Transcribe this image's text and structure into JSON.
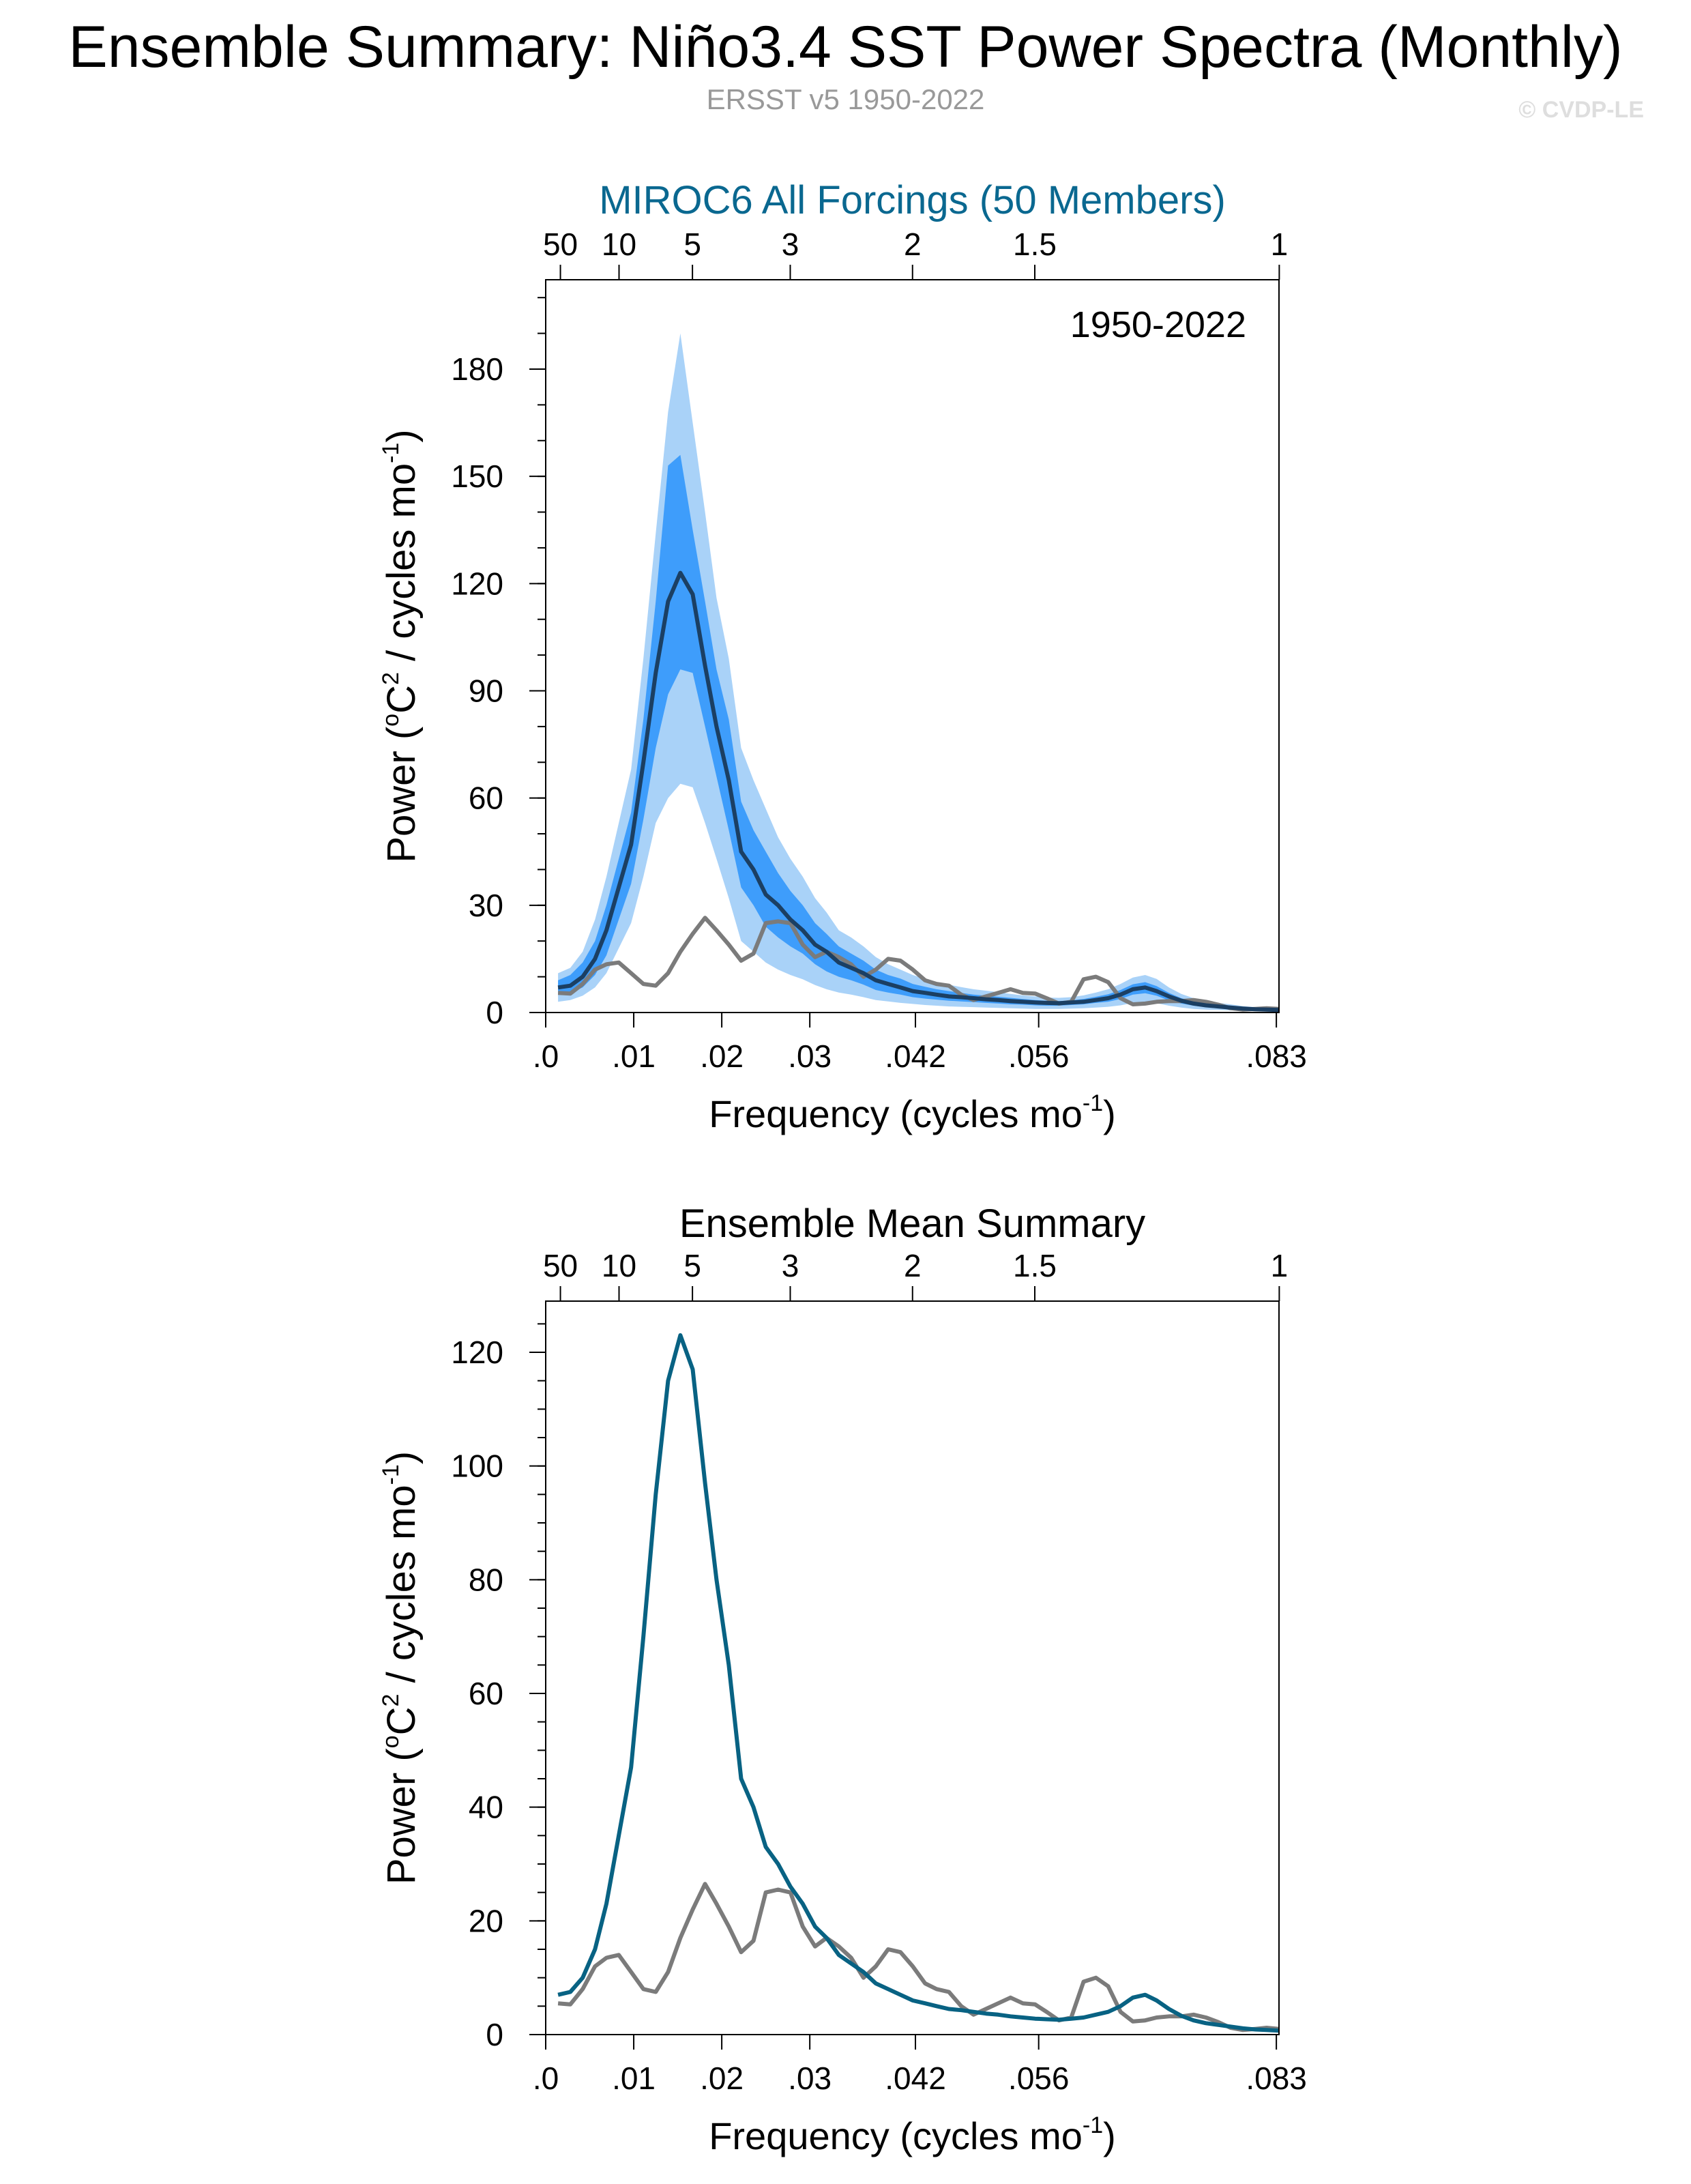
{
  "title": "Ensemble Summary: Niño3.4 SST Power Spectra (Monthly)",
  "subtitle": "ERSST v5 1950-2022",
  "credit": "© CVDP-LE",
  "colors": {
    "panel1_title": "#0a6890",
    "ensemble_mean_line": "#1b3f63",
    "band_outer": "#a9d2f8",
    "band_inner": "#3e9dfb",
    "panel2_mean_line": "#086283",
    "observations_line": "#7b7b7b"
  },
  "chart_data": [
    {
      "type": "area",
      "title": "MIROC6 All Forcings (50 Members)",
      "annotation": "1950-2022",
      "xlabel": "Frequency (cycles mo",
      "xlabel_sup": "-1",
      "xlabel_end": ")",
      "ylabel_pre": "Power (",
      "ylabel_o": "o",
      "ylabel_c": "C",
      "ylabel_2": "2",
      "ylabel_mid": " / cycles mo",
      "ylabel_sup": "-1",
      "ylabel_end": ")",
      "xlim": [
        0,
        0.0833
      ],
      "ylim": [
        0,
        205
      ],
      "x_ticks": [
        {
          "value": 0.0,
          "label": ".0"
        },
        {
          "value": 0.01,
          "label": ".01"
        },
        {
          "value": 0.02,
          "label": ".02"
        },
        {
          "value": 0.03,
          "label": ".03"
        },
        {
          "value": 0.042,
          "label": ".042"
        },
        {
          "value": 0.056,
          "label": ".056"
        },
        {
          "value": 0.083,
          "label": ".083"
        }
      ],
      "top_ticks": [
        {
          "value": 0.00167,
          "label": "50"
        },
        {
          "value": 0.00833,
          "label": "10"
        },
        {
          "value": 0.01667,
          "label": "5"
        },
        {
          "value": 0.02778,
          "label": "3"
        },
        {
          "value": 0.04167,
          "label": "2"
        },
        {
          "value": 0.05556,
          "label": "1.5"
        },
        {
          "value": 0.08333,
          "label": "1"
        }
      ],
      "y_ticks": [
        0,
        30,
        60,
        90,
        120,
        150,
        180
      ],
      "y_minor_step": 10,
      "x": [
        0.0014,
        0.0028,
        0.0042,
        0.0056,
        0.0069,
        0.0083,
        0.0097,
        0.0111,
        0.0125,
        0.0139,
        0.0153,
        0.0167,
        0.0181,
        0.0194,
        0.0208,
        0.0222,
        0.0236,
        0.025,
        0.0264,
        0.0278,
        0.0292,
        0.0306,
        0.0319,
        0.0333,
        0.0347,
        0.0361,
        0.0375,
        0.0389,
        0.0403,
        0.0417,
        0.0431,
        0.0444,
        0.0458,
        0.0472,
        0.0486,
        0.05,
        0.0514,
        0.0528,
        0.0542,
        0.0556,
        0.0569,
        0.0583,
        0.0597,
        0.0611,
        0.0625,
        0.0639,
        0.0653,
        0.0667,
        0.0681,
        0.0694,
        0.0708,
        0.0722,
        0.0736,
        0.075,
        0.0764,
        0.0778,
        0.0792,
        0.0806,
        0.0819,
        0.0833
      ],
      "series": [
        {
          "name": "mean",
          "values": [
            7,
            7.5,
            10,
            15,
            23,
            35,
            47,
            70,
            95,
            115,
            123,
            117,
            97,
            80,
            65,
            45,
            40,
            33,
            30,
            26,
            23,
            19,
            17,
            14,
            12.5,
            11,
            9,
            8,
            7,
            6,
            5.5,
            5,
            4.5,
            4.3,
            4,
            3.7,
            3.5,
            3.2,
            3,
            2.8,
            2.7,
            2.6,
            2.8,
            3,
            3.5,
            4,
            5,
            6.5,
            7,
            6,
            4.5,
            3.3,
            2.5,
            2,
            1.7,
            1.4,
            1.1,
            0.9,
            0.8,
            0.7
          ]
        },
        {
          "name": "inner_upper",
          "values": [
            9,
            10.5,
            14,
            20,
            30,
            43,
            56,
            82,
            115,
            153,
            156,
            135,
            115,
            96,
            82,
            59,
            51,
            45,
            39,
            34,
            30,
            25,
            22,
            18.5,
            16.5,
            14.5,
            12,
            10.5,
            9.5,
            8,
            7.2,
            6.5,
            6,
            5.5,
            5,
            4.7,
            4.4,
            4.1,
            3.8,
            3.5,
            3.3,
            3.2,
            3.4,
            3.8,
            4.4,
            5.1,
            6.3,
            7.9,
            8.5,
            7.4,
            5.5,
            4,
            3.1,
            2.5,
            2.1,
            1.7,
            1.4,
            1.1,
            1,
            0.9
          ]
        },
        {
          "name": "inner_lower",
          "values": [
            5,
            5.5,
            7,
            10.5,
            16,
            26,
            36,
            54,
            74,
            89,
            96,
            95,
            80,
            66,
            51,
            35,
            30,
            24,
            21,
            18.5,
            16.5,
            13.5,
            11.5,
            10,
            9,
            7.8,
            6.3,
            5.6,
            5,
            4.3,
            3.9,
            3.6,
            3.3,
            3.1,
            2.9,
            2.7,
            2.5,
            2.3,
            2.2,
            2,
            1.9,
            1.9,
            2.1,
            2.3,
            2.7,
            3,
            3.8,
            5,
            5.4,
            4.7,
            3.4,
            2.5,
            1.9,
            1.5,
            1.3,
            1.1,
            0.8,
            0.7,
            0.6,
            0.5
          ]
        },
        {
          "name": "outer_upper",
          "values": [
            11,
            12.5,
            17,
            26,
            38,
            53,
            68,
            99,
            134,
            168,
            190,
            165,
            140,
            116,
            99,
            74,
            65,
            57,
            49,
            43,
            38,
            32,
            28,
            23,
            21,
            18.5,
            15.5,
            13.5,
            12,
            10.5,
            9.4,
            8.5,
            7.8,
            7.1,
            6.5,
            6.1,
            5.7,
            5.2,
            4.8,
            4.5,
            4.2,
            4.1,
            4.3,
            4.8,
            5.6,
            6.5,
            8,
            9.8,
            10.5,
            9.4,
            7,
            5.2,
            4,
            3.2,
            2.7,
            2.3,
            1.8,
            1.5,
            1.3,
            1.2
          ]
        },
        {
          "name": "outer_lower",
          "values": [
            3,
            3.5,
            4.7,
            7,
            11,
            18,
            25,
            38,
            53,
            60,
            64,
            63,
            53,
            43,
            32,
            20,
            17,
            14,
            12,
            10.5,
            9.3,
            7.7,
            6.5,
            5.6,
            5,
            4.3,
            3.5,
            3.1,
            2.7,
            2.4,
            2.1,
            1.9,
            1.7,
            1.6,
            1.5,
            1.4,
            1.3,
            1.2,
            1.1,
            1,
            1,
            1,
            1.1,
            1.2,
            1.4,
            1.6,
            2,
            2.7,
            2.9,
            2.6,
            1.9,
            1.4,
            1,
            0.8,
            0.7,
            0.6,
            0.4,
            0.4,
            0.3,
            0.3
          ]
        },
        {
          "name": "observations",
          "values": [
            5.5,
            5.3,
            8,
            12,
            13.5,
            14,
            11,
            8,
            7.5,
            11,
            17,
            22,
            26.5,
            23,
            19,
            14.5,
            16.5,
            25,
            25.5,
            25,
            19,
            15.5,
            17,
            15.5,
            13.5,
            10,
            12,
            15,
            14.5,
            12,
            9,
            8,
            7.5,
            5,
            3.5,
            4.5,
            5.5,
            6.5,
            5.5,
            5.3,
            4,
            2.5,
            3,
            9.3,
            10,
            8.5,
            4,
            2.3,
            2.5,
            3,
            3.2,
            3.2,
            3.5,
            3,
            2.2,
            1.2,
            0.8,
            1,
            1.2,
            1
          ]
        }
      ]
    },
    {
      "type": "line",
      "title": "Ensemble Mean Summary",
      "xlabel": "Frequency (cycles mo",
      "xlabel_sup": "-1",
      "xlabel_end": ")",
      "ylabel_pre": "Power (",
      "ylabel_o": "o",
      "ylabel_c": "C",
      "ylabel_2": "2",
      "ylabel_mid": " / cycles mo",
      "ylabel_sup": "-1",
      "ylabel_end": ")",
      "xlim": [
        0,
        0.0833
      ],
      "ylim": [
        0,
        129
      ],
      "x_ticks": [
        {
          "value": 0.0,
          "label": ".0"
        },
        {
          "value": 0.01,
          "label": ".01"
        },
        {
          "value": 0.02,
          "label": ".02"
        },
        {
          "value": 0.03,
          "label": ".03"
        },
        {
          "value": 0.042,
          "label": ".042"
        },
        {
          "value": 0.056,
          "label": ".056"
        },
        {
          "value": 0.083,
          "label": ".083"
        }
      ],
      "top_ticks": [
        {
          "value": 0.00167,
          "label": "50"
        },
        {
          "value": 0.00833,
          "label": "10"
        },
        {
          "value": 0.01667,
          "label": "5"
        },
        {
          "value": 0.02778,
          "label": "3"
        },
        {
          "value": 0.04167,
          "label": "2"
        },
        {
          "value": 0.05556,
          "label": "1.5"
        },
        {
          "value": 0.08333,
          "label": "1"
        }
      ],
      "y_ticks": [
        0,
        20,
        40,
        60,
        80,
        100,
        120
      ],
      "y_minor_step": 5,
      "x": [
        0.0014,
        0.0028,
        0.0042,
        0.0056,
        0.0069,
        0.0083,
        0.0097,
        0.0111,
        0.0125,
        0.0139,
        0.0153,
        0.0167,
        0.0181,
        0.0194,
        0.0208,
        0.0222,
        0.0236,
        0.025,
        0.0264,
        0.0278,
        0.0292,
        0.0306,
        0.0319,
        0.0333,
        0.0347,
        0.0361,
        0.0375,
        0.0389,
        0.0403,
        0.0417,
        0.0431,
        0.0444,
        0.0458,
        0.0472,
        0.0486,
        0.05,
        0.0514,
        0.0528,
        0.0542,
        0.0556,
        0.0569,
        0.0583,
        0.0597,
        0.0611,
        0.0625,
        0.0639,
        0.0653,
        0.0667,
        0.0681,
        0.0694,
        0.0708,
        0.0722,
        0.0736,
        0.075,
        0.0764,
        0.0778,
        0.0792,
        0.0806,
        0.0819,
        0.0833
      ],
      "series": [
        {
          "name": "mean",
          "values": [
            7,
            7.5,
            10,
            15,
            23,
            35,
            47,
            70,
            95,
            115,
            123,
            117,
            97,
            80,
            65,
            45,
            40,
            33,
            30,
            26,
            23,
            19,
            17,
            14,
            12.5,
            11,
            9,
            8,
            7,
            6,
            5.5,
            5,
            4.5,
            4.3,
            4,
            3.7,
            3.5,
            3.2,
            3,
            2.8,
            2.7,
            2.6,
            2.8,
            3,
            3.5,
            4,
            5,
            6.5,
            7,
            6,
            4.5,
            3.3,
            2.5,
            2,
            1.7,
            1.4,
            1.1,
            0.9,
            0.8,
            0.7
          ]
        },
        {
          "name": "observations",
          "values": [
            5.5,
            5.3,
            8,
            12,
            13.5,
            14,
            11,
            8,
            7.5,
            11,
            17,
            22,
            26.5,
            23,
            19,
            14.5,
            16.5,
            25,
            25.5,
            25,
            19,
            15.5,
            17,
            15.5,
            13.5,
            10,
            12,
            15,
            14.5,
            12,
            9,
            8,
            7.5,
            5,
            3.5,
            4.5,
            5.5,
            6.5,
            5.5,
            5.3,
            4,
            2.5,
            3,
            9.3,
            10,
            8.5,
            4,
            2.3,
            2.5,
            3,
            3.2,
            3.2,
            3.5,
            3,
            2.2,
            1.2,
            0.8,
            1,
            1.2,
            1
          ]
        }
      ]
    }
  ]
}
